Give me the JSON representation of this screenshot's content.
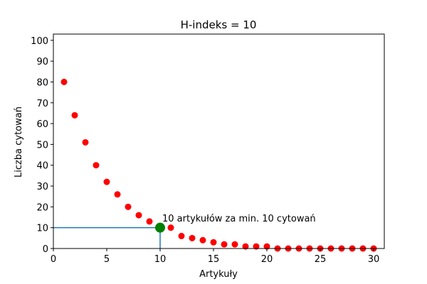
{
  "chart_data": {
    "type": "scatter",
    "title": "H-indeks = 10",
    "xlabel": "Artykuły",
    "ylabel": "Liczba cytowań",
    "xlim": [
      0,
      31
    ],
    "ylim": [
      0,
      103
    ],
    "xticks": [
      0,
      5,
      10,
      15,
      20,
      25,
      30
    ],
    "yticks": [
      0,
      10,
      20,
      30,
      40,
      50,
      60,
      70,
      80,
      90,
      100
    ],
    "grid": false,
    "legend": null,
    "series": [
      {
        "name": "citations",
        "color": "#ff0000",
        "marker": "circle",
        "x": [
          1,
          2,
          3,
          4,
          5,
          6,
          7,
          8,
          9,
          10,
          11,
          12,
          13,
          14,
          15,
          16,
          17,
          18,
          19,
          20,
          21,
          22,
          23,
          24,
          25,
          26,
          27,
          28,
          29,
          30
        ],
        "y": [
          80,
          64,
          51,
          40,
          32,
          26,
          20,
          16,
          13,
          10,
          10,
          6,
          5,
          4,
          3,
          2,
          2,
          1,
          1,
          1,
          0,
          0,
          0,
          0,
          0,
          0,
          0,
          0,
          0,
          0
        ]
      }
    ],
    "h_index_point": {
      "x": 10,
      "y": 10,
      "color": "#008000"
    },
    "guide_lines": {
      "color": "#1f77b4",
      "horizontal": {
        "y": 10,
        "x_from": 0,
        "x_to": 10
      },
      "vertical": {
        "x": 10,
        "y_from": 0,
        "y_to": 10
      }
    },
    "annotations": [
      {
        "text": "10 artykułów za min. 10 cytowań",
        "x": 10.2,
        "y": 13
      }
    ]
  }
}
